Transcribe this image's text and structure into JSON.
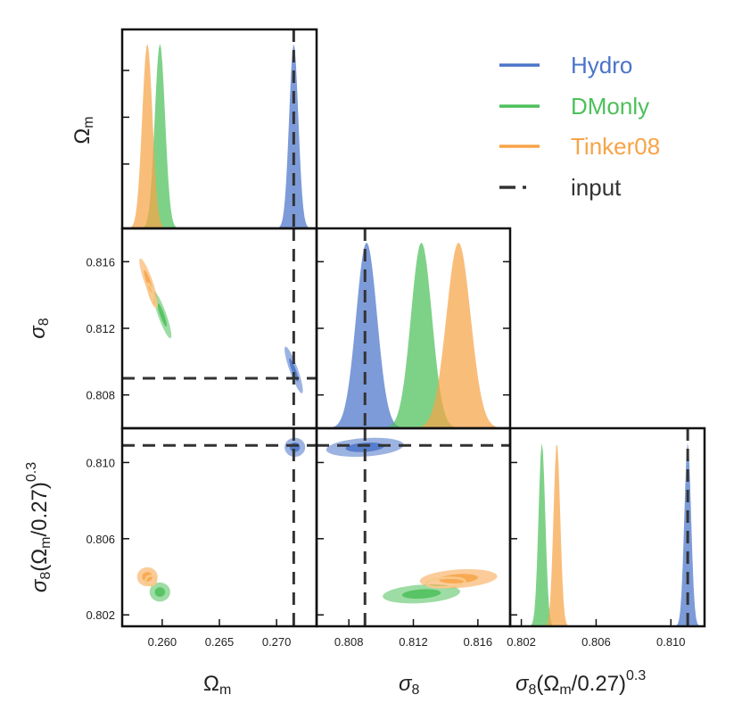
{
  "colors": {
    "Hydro": "#4a74c9",
    "DMonly": "#4cc05a",
    "Tinker08": "#f7a347",
    "input": "#333333"
  },
  "legend": [
    {
      "name": "Hydro",
      "style": "solid"
    },
    {
      "name": "DMonly",
      "style": "solid"
    },
    {
      "name": "Tinker08",
      "style": "solid"
    },
    {
      "name": "input",
      "style": "dashed"
    }
  ],
  "labels": {
    "om_base": "Ω",
    "om_sub": "m",
    "s8_base": "σ",
    "s8_sub": "8",
    "s8om_prefix": "(Ω",
    "s8om_suffix": "/0.27)",
    "s8om_exp": "0.3"
  },
  "chart_data": {
    "type": "corner",
    "parameters": [
      "Ωm",
      "σ8",
      "σ8(Ωm/0.27)^0.3"
    ],
    "ranges": {
      "om": [
        0.2565,
        0.2735
      ],
      "s8": [
        0.806,
        0.818
      ],
      "s8om": [
        0.8014,
        0.8118
      ]
    },
    "ticks": {
      "om": {
        "values": [
          0.26,
          0.265,
          0.27
        ],
        "labels": [
          "0.260",
          "0.265",
          "0.270"
        ]
      },
      "s8": {
        "values": [
          0.808,
          0.812,
          0.816
        ],
        "labels": [
          "0.808",
          "0.812",
          "0.816"
        ]
      },
      "s8om": {
        "values": [
          0.802,
          0.806,
          0.81
        ],
        "labels": [
          "0.802",
          "0.806",
          "0.810"
        ]
      }
    },
    "input": {
      "om": 0.2715,
      "s8": 0.809,
      "s8om": 0.8109
    },
    "marginals": {
      "om": [
        {
          "series": "Hydro",
          "mean": 0.2715,
          "sigma": 0.0004
        },
        {
          "series": "DMonly",
          "mean": 0.2598,
          "sigma": 0.00045
        },
        {
          "series": "Tinker08",
          "mean": 0.2587,
          "sigma": 0.00045
        }
      ],
      "s8": [
        {
          "series": "Hydro",
          "mean": 0.8091,
          "sigma": 0.00065
        },
        {
          "series": "DMonly",
          "mean": 0.8125,
          "sigma": 0.00065
        },
        {
          "series": "Tinker08",
          "mean": 0.8148,
          "sigma": 0.00075
        }
      ],
      "s8om": [
        {
          "series": "Hydro",
          "mean": 0.8109,
          "sigma": 0.00018
        },
        {
          "series": "DMonly",
          "mean": 0.8031,
          "sigma": 0.00018
        },
        {
          "series": "Tinker08",
          "mean": 0.8039,
          "sigma": 0.00018
        }
      ]
    },
    "contours": {
      "om_s8": [
        {
          "series": "Hydro",
          "center": [
            0.2715,
            0.8095
          ],
          "radii_1s": [
            0.0004,
            0.0007
          ],
          "corr": -0.88
        },
        {
          "series": "DMonly",
          "center": [
            0.26,
            0.8128
          ],
          "radii_1s": [
            0.0004,
            0.0007
          ],
          "corr": -0.88
        },
        {
          "series": "Tinker08",
          "center": [
            0.2588,
            0.8148
          ],
          "radii_1s": [
            0.0004,
            0.0007
          ],
          "corr": -0.88
        }
      ],
      "om_s8om": [
        {
          "series": "Hydro",
          "center": [
            0.2716,
            0.8108
          ],
          "radii_1s": [
            0.00045,
            0.00025
          ],
          "corr": 0.0
        },
        {
          "series": "DMonly",
          "center": [
            0.2598,
            0.8032
          ],
          "radii_1s": [
            0.00045,
            0.00025
          ],
          "corr": 0.0
        },
        {
          "series": "Tinker08",
          "center": [
            0.2587,
            0.804
          ],
          "radii_1s": [
            0.00045,
            0.00025
          ],
          "corr": 0.0
        }
      ],
      "s8_s8om": [
        {
          "series": "Hydro",
          "center": [
            0.809,
            0.8108
          ],
          "radii_1s": [
            0.0012,
            0.00025
          ],
          "corr": 0.25
        },
        {
          "series": "DMonly",
          "center": [
            0.8125,
            0.8031
          ],
          "radii_1s": [
            0.0012,
            0.00025
          ],
          "corr": 0.25
        },
        {
          "series": "Tinker08",
          "center": [
            0.8148,
            0.8039
          ],
          "radii_1s": [
            0.0012,
            0.00025
          ],
          "corr": 0.25
        }
      ]
    }
  }
}
